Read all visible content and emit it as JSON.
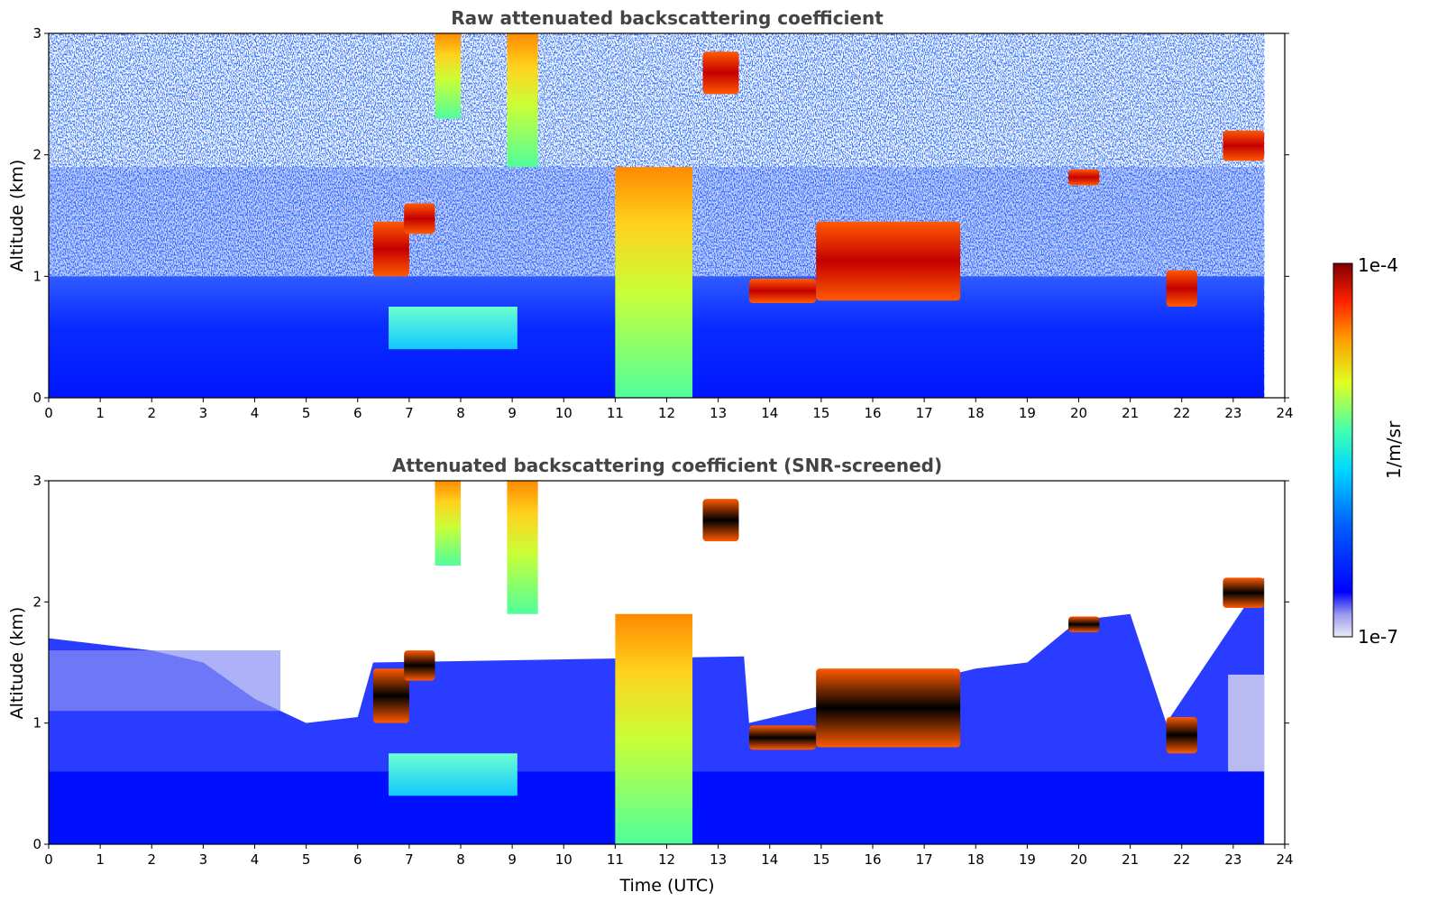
{
  "chart_data": [
    {
      "type": "heatmap",
      "title": "Raw attenuated backscattering coefficient",
      "xlabel": "",
      "ylabel": "Altitude (km)",
      "xlim": [
        0,
        24
      ],
      "ylim": [
        0,
        3
      ],
      "x_ticks": [
        "0",
        "1",
        "2",
        "3",
        "4",
        "5",
        "6",
        "7",
        "8",
        "9",
        "10",
        "11",
        "12",
        "13",
        "14",
        "15",
        "16",
        "17",
        "18",
        "19",
        "20",
        "21",
        "22",
        "23",
        "24"
      ],
      "y_ticks": [
        "0",
        "1",
        "2",
        "3"
      ],
      "data_end_time": 23.6,
      "features": [
        {
          "feature": "boundary layer aerosol",
          "t_start": 0,
          "t_end": 23.6,
          "alt_bottom": 0,
          "alt_top": 1.0
        },
        {
          "feature": "aerosol layer",
          "t_start": 6.6,
          "t_end": 9.1,
          "alt_bottom": 0.4,
          "alt_top": 0.75
        },
        {
          "feature": "precipitation",
          "t_start": 11.0,
          "t_end": 12.5,
          "alt_bottom": 0,
          "alt_top": 1.9
        },
        {
          "feature": "precipitation",
          "t_start": 7.5,
          "t_end": 8.0,
          "alt_bottom": 2.3,
          "alt_top": 3.0
        },
        {
          "feature": "precipitation",
          "t_start": 8.9,
          "t_end": 9.5,
          "alt_bottom": 1.9,
          "alt_top": 3.0
        },
        {
          "feature": "cloud",
          "t_start": 6.3,
          "t_end": 7.0,
          "alt_bottom": 1.0,
          "alt_top": 1.45
        },
        {
          "feature": "cloud",
          "t_start": 6.9,
          "t_end": 7.5,
          "alt_bottom": 1.35,
          "alt_top": 1.6
        },
        {
          "feature": "cloud",
          "t_start": 13.6,
          "t_end": 14.9,
          "alt_bottom": 0.78,
          "alt_top": 0.98
        },
        {
          "feature": "cloud",
          "t_start": 14.9,
          "t_end": 17.7,
          "alt_bottom": 0.8,
          "alt_top": 1.45
        },
        {
          "feature": "cloud",
          "t_start": 12.7,
          "t_end": 13.4,
          "alt_bottom": 2.5,
          "alt_top": 2.85
        },
        {
          "feature": "cloud",
          "t_start": 19.8,
          "t_end": 20.4,
          "alt_bottom": 1.75,
          "alt_top": 1.88
        },
        {
          "feature": "cloud",
          "t_start": 21.7,
          "t_end": 22.3,
          "alt_bottom": 0.75,
          "alt_top": 1.05
        },
        {
          "feature": "cloud",
          "t_start": 22.8,
          "t_end": 23.6,
          "alt_bottom": 1.95,
          "alt_top": 2.2
        }
      ]
    },
    {
      "type": "heatmap",
      "title": "Attenuated backscattering coefficient (SNR-screened)",
      "xlabel": "Time (UTC)",
      "ylabel": "Altitude (km)",
      "xlim": [
        0,
        24
      ],
      "ylim": [
        0,
        3
      ],
      "x_ticks": [
        "0",
        "1",
        "2",
        "3",
        "4",
        "5",
        "6",
        "7",
        "8",
        "9",
        "10",
        "11",
        "12",
        "13",
        "14",
        "15",
        "16",
        "17",
        "18",
        "19",
        "20",
        "21",
        "22",
        "23",
        "24"
      ],
      "y_ticks": [
        "0",
        "1",
        "2",
        "3"
      ],
      "data_end_time": 23.6,
      "screened_signal_top": [
        {
          "t": 0,
          "alt": 1.7
        },
        {
          "t": 2,
          "alt": 1.6
        },
        {
          "t": 3,
          "alt": 1.5
        },
        {
          "t": 4,
          "alt": 1.2
        },
        {
          "t": 5,
          "alt": 1.0
        },
        {
          "t": 6,
          "alt": 1.05
        },
        {
          "t": 6.3,
          "alt": 1.5
        },
        {
          "t": 13.5,
          "alt": 1.55
        },
        {
          "t": 13.6,
          "alt": 1.0
        },
        {
          "t": 18,
          "alt": 1.45
        },
        {
          "t": 19,
          "alt": 1.5
        },
        {
          "t": 20,
          "alt": 1.85
        },
        {
          "t": 21,
          "alt": 1.9
        },
        {
          "t": 21.7,
          "alt": 1.0
        },
        {
          "t": 23.6,
          "alt": 2.2
        }
      ]
    }
  ],
  "colorbar": {
    "label": "1/m/sr",
    "max_label": "1e-4",
    "min_label": "1e-7",
    "colormap": "jet"
  }
}
